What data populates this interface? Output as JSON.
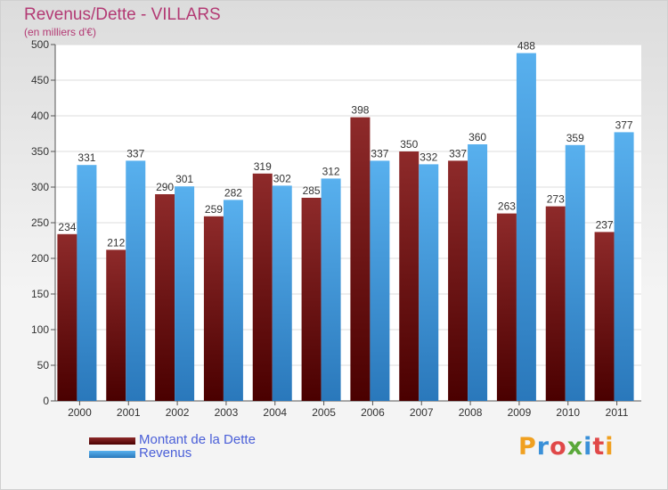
{
  "title": "Revenus/Dette - VILLARS",
  "subtitle": "(en milliers d'€)",
  "logo_text": "Proxiti",
  "colors": {
    "dette": "#7a1c1c",
    "revenus": "#4ea7e6",
    "title": "#b33a74",
    "legend_text": "#4a5fd8"
  },
  "chart_data": {
    "type": "bar",
    "categories": [
      "2000",
      "2001",
      "2002",
      "2003",
      "2004",
      "2005",
      "2006",
      "2007",
      "2008",
      "2009",
      "2010",
      "2011"
    ],
    "series": [
      {
        "name": "Montant de la Dette",
        "values": [
          234,
          212,
          290,
          259,
          319,
          285,
          398,
          350,
          337,
          263,
          273,
          237
        ]
      },
      {
        "name": "Revenus",
        "values": [
          331,
          337,
          301,
          282,
          302,
          312,
          337,
          332,
          360,
          488,
          359,
          377
        ]
      }
    ],
    "ylim": [
      0,
      500
    ],
    "yticks": [
      0,
      50,
      100,
      150,
      200,
      250,
      300,
      350,
      400,
      450,
      500
    ],
    "grid": true,
    "legend_position": "bottom-left"
  }
}
